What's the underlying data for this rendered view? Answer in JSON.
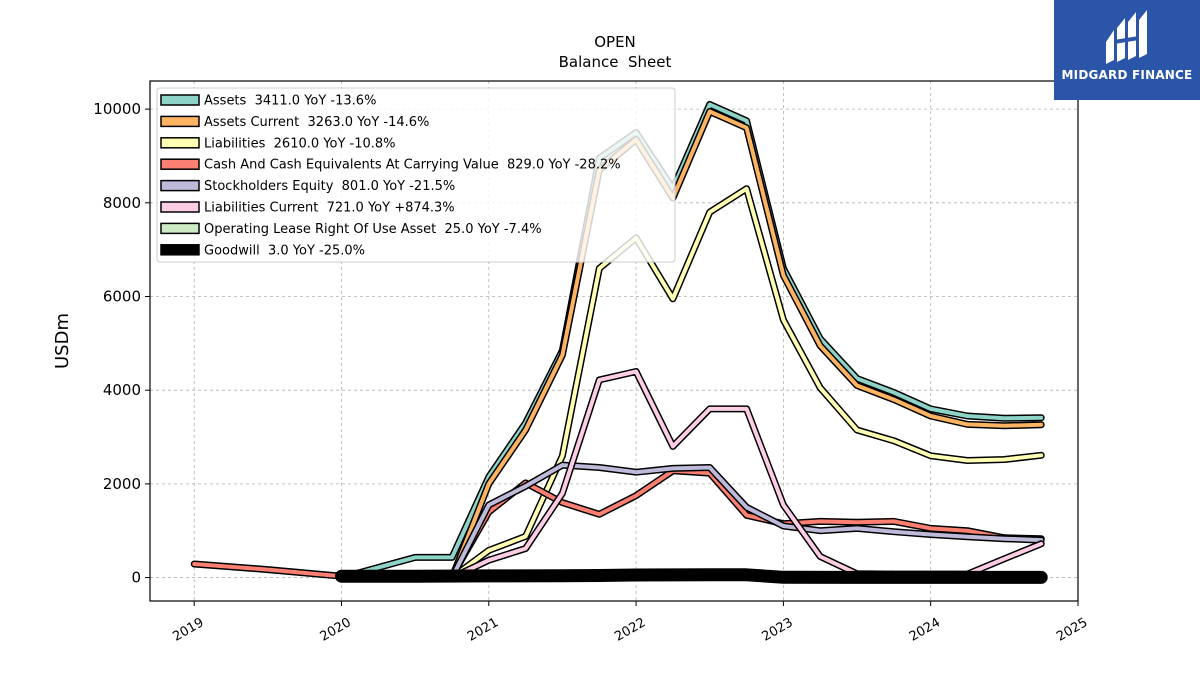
{
  "brand": {
    "name": "MIDGARD FINANCE"
  },
  "chart_data": {
    "type": "line",
    "title": "OPEN",
    "subtitle": "Balance  Sheet",
    "xlabel": "",
    "ylabel": "USDm",
    "xlim": [
      2018.7,
      2025.0
    ],
    "ylim": [
      -500,
      10600
    ],
    "xticks": [
      2019,
      2020,
      2021,
      2022,
      2023,
      2024,
      2025
    ],
    "xtick_labels": [
      "2019",
      "2020",
      "2021",
      "2022",
      "2023",
      "2024",
      "2025"
    ],
    "yticks": [
      0,
      2000,
      4000,
      6000,
      8000,
      10000
    ],
    "ytick_labels": [
      "0",
      "2000",
      "4000",
      "6000",
      "8000",
      "10000"
    ],
    "grid": true,
    "legend_position": "top-left",
    "series": [
      {
        "name": "Assets",
        "legend": "Assets  3411.0 YoY -13.6%",
        "color": "#8dd3c7",
        "width": 4,
        "x": [
          2020.0,
          2020.5,
          2020.75,
          2021.0,
          2021.25,
          2021.5,
          2021.75,
          2022.0,
          2022.25,
          2022.5,
          2022.75,
          2023.0,
          2023.25,
          2023.5,
          2023.75,
          2024.0,
          2024.25,
          2024.5,
          2024.75
        ],
        "y": [
          0,
          430,
          430,
          2150,
          3300,
          4850,
          8950,
          9500,
          8300,
          10100,
          9750,
          6600,
          5100,
          4250,
          3950,
          3600,
          3450,
          3400,
          3411
        ]
      },
      {
        "name": "Assets Current",
        "legend": "Assets Current  3263.0 YoY -14.6%",
        "color": "#fdb462",
        "width": 4,
        "x": [
          2020.5,
          2020.75,
          2021.0,
          2021.25,
          2021.5,
          2021.75,
          2022.0,
          2022.25,
          2022.5,
          2022.75,
          2023.0,
          2023.25,
          2023.5,
          2023.75,
          2024.0,
          2024.25,
          2024.5,
          2024.75
        ],
        "y": [
          0,
          0,
          2000,
          3150,
          4750,
          8700,
          9350,
          8100,
          9950,
          9600,
          6450,
          4950,
          4100,
          3800,
          3450,
          3270,
          3240,
          3263
        ]
      },
      {
        "name": "Liabilities",
        "legend": "Liabilities  2610.0 YoY -10.8%",
        "color": "#ffffb3",
        "width": 4,
        "x": [
          2020.75,
          2021.0,
          2021.25,
          2021.5,
          2021.75,
          2022.0,
          2022.25,
          2022.5,
          2022.75,
          2023.0,
          2023.25,
          2023.5,
          2023.75,
          2024.0,
          2024.25,
          2024.5,
          2024.75
        ],
        "y": [
          0,
          580,
          880,
          2600,
          6600,
          7250,
          5950,
          7800,
          8300,
          5500,
          4050,
          3150,
          2920,
          2600,
          2500,
          2520,
          2610
        ]
      },
      {
        "name": "Cash And Cash Equivalents At Carrying Value",
        "legend": "Cash And Cash Equivalents At Carrying Value  829.0 YoY -28.2%",
        "color": "#fb8072",
        "width": 4,
        "x": [
          2019.0,
          2019.5,
          2020.0,
          2020.5,
          2020.75,
          2021.0,
          2021.25,
          2021.5,
          2021.75,
          2022.0,
          2022.25,
          2022.5,
          2022.75,
          2023.0,
          2023.25,
          2023.5,
          2023.75,
          2024.0,
          2024.25,
          2024.5,
          2024.75
        ],
        "y": [
          290,
          170,
          30,
          30,
          30,
          1400,
          2020,
          1600,
          1350,
          1750,
          2280,
          2230,
          1330,
          1150,
          1200,
          1180,
          1200,
          1050,
          1000,
          850,
          829
        ]
      },
      {
        "name": "Stockholders Equity",
        "legend": "Stockholders Equity  801.0 YoY -21.5%",
        "color": "#bebada",
        "width": 4,
        "x": [
          2020.75,
          2021.0,
          2021.25,
          2021.5,
          2021.75,
          2022.0,
          2022.25,
          2022.5,
          2022.75,
          2023.0,
          2023.25,
          2023.5,
          2023.75,
          2024.0,
          2024.25,
          2024.5,
          2024.75
        ],
        "y": [
          0,
          1550,
          1950,
          2400,
          2350,
          2250,
          2330,
          2350,
          1500,
          1100,
          1000,
          1050,
          980,
          920,
          870,
          830,
          801
        ]
      },
      {
        "name": "Liabilities Current",
        "legend": "Liabilities Current  721.0 YoY +874.3%",
        "color": "#fccde5",
        "width": 4,
        "x": [
          2020.75,
          2021.0,
          2021.25,
          2021.5,
          2021.75,
          2022.0,
          2022.25,
          2022.5,
          2022.75,
          2023.0,
          2023.25,
          2023.5,
          2023.75,
          2024.0,
          2024.25,
          2024.5,
          2024.75
        ],
        "y": [
          0,
          370,
          620,
          1800,
          4220,
          4400,
          2800,
          3600,
          3600,
          1550,
          450,
          80,
          75,
          74,
          74,
          400,
          721
        ]
      },
      {
        "name": "Operating Lease Right Of Use Asset",
        "legend": "Operating Lease Right Of Use Asset  25.0 YoY -7.4%",
        "color": "#ccebc5",
        "width": 4,
        "x": [
          2020.0,
          2020.5,
          2021.0,
          2021.5,
          2022.0,
          2022.5,
          2023.0,
          2023.5,
          2024.0,
          2024.5,
          2024.75
        ],
        "y": [
          40,
          40,
          38,
          35,
          33,
          30,
          30,
          28,
          27,
          26,
          25
        ]
      },
      {
        "name": "Goodwill",
        "legend": "Goodwill  3.0 YoY -25.0%",
        "color": "#000000",
        "width": 10,
        "x": [
          2020.0,
          2020.5,
          2021.0,
          2021.5,
          2021.75,
          2022.0,
          2022.5,
          2022.75,
          2023.0,
          2023.5,
          2024.0,
          2024.5,
          2024.75
        ],
        "y": [
          30,
          30,
          35,
          40,
          45,
          55,
          60,
          60,
          5,
          4,
          4,
          4,
          3
        ]
      }
    ]
  }
}
